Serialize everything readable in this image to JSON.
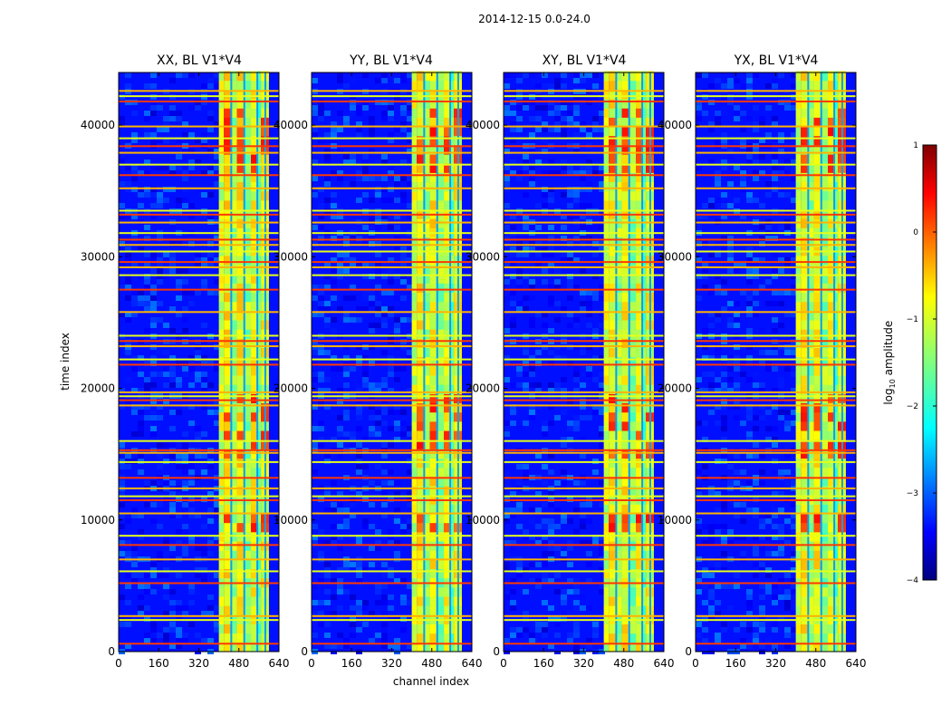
{
  "figure": {
    "suptitle": "2014-12-15 0.0-24.0",
    "xlabel": "channel index",
    "ylabel": "time index",
    "colorbar": {
      "label_prefix": "log",
      "label_sub": "10",
      "label_suffix": " amplitude",
      "ticks": [
        1,
        0,
        -1,
        -2,
        -3,
        -4
      ],
      "tick_labels": [
        "1",
        "0",
        "−1",
        "−2",
        "−3",
        "−4"
      ],
      "colormap": "jet",
      "vmin": -4,
      "vmax": 1
    }
  },
  "chart_data": [
    {
      "type": "heatmap",
      "title": "XX, BL V1*V4",
      "xlabel": "channel index",
      "ylabel": "time index",
      "x_ticks": [
        0,
        160,
        320,
        480,
        640
      ],
      "y_ticks": [
        0,
        10000,
        20000,
        30000,
        40000
      ],
      "xlim": [
        0,
        640
      ],
      "ylim": [
        0,
        44000
      ],
      "bright_band_channels": [
        400,
        600
      ],
      "value_range_log10": [
        -4,
        1
      ]
    },
    {
      "type": "heatmap",
      "title": "YY, BL V1*V4",
      "xlabel": "channel index",
      "ylabel": "time index",
      "x_ticks": [
        0,
        160,
        320,
        480,
        640
      ],
      "y_ticks": [
        0,
        10000,
        20000,
        30000,
        40000
      ],
      "xlim": [
        0,
        640
      ],
      "ylim": [
        0,
        44000
      ],
      "bright_band_channels": [
        400,
        600
      ],
      "value_range_log10": [
        -4,
        1
      ]
    },
    {
      "type": "heatmap",
      "title": "XY, BL V1*V4",
      "xlabel": "channel index",
      "ylabel": "time index",
      "x_ticks": [
        0,
        160,
        320,
        480,
        640
      ],
      "y_ticks": [
        0,
        10000,
        20000,
        30000,
        40000
      ],
      "xlim": [
        0,
        640
      ],
      "ylim": [
        0,
        44000
      ],
      "bright_band_channels": [
        400,
        600
      ],
      "value_range_log10": [
        -4,
        1
      ]
    },
    {
      "type": "heatmap",
      "title": "YX, BL V1*V4",
      "xlabel": "channel index",
      "ylabel": "time index",
      "x_ticks": [
        0,
        160,
        320,
        480,
        640
      ],
      "y_ticks": [
        0,
        10000,
        20000,
        30000,
        40000
      ],
      "xlim": [
        0,
        640
      ],
      "ylim": [
        0,
        44000
      ],
      "bright_band_channels": [
        400,
        600
      ],
      "value_range_log10": [
        -4,
        1
      ]
    }
  ],
  "rfi_time_rows": [
    600,
    2400,
    2700,
    5200,
    6100,
    7000,
    8100,
    8800,
    10500,
    11500,
    11800,
    12400,
    13200,
    14400,
    15100,
    15300,
    16000,
    18700,
    19100,
    19400,
    19700,
    21800,
    22200,
    23200,
    23600,
    24000,
    25800,
    27500,
    28600,
    29200,
    29600,
    30400,
    30900,
    31300,
    31800,
    32600,
    33200,
    33500,
    35200,
    36200,
    37000,
    37900,
    38400,
    39000,
    39900,
    41800,
    42200,
    42600
  ]
}
